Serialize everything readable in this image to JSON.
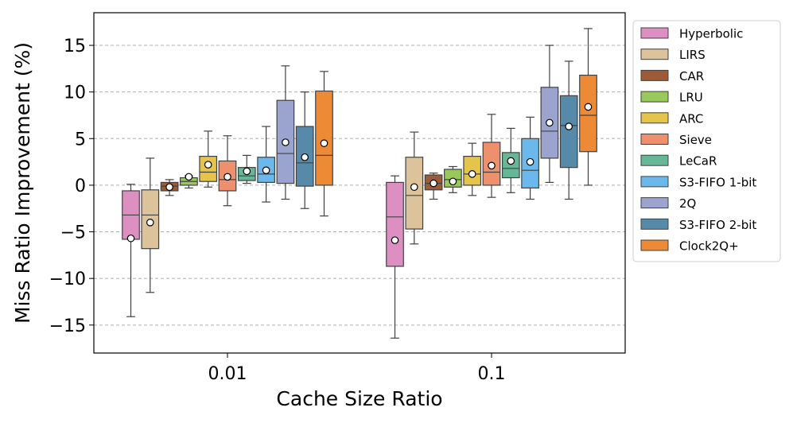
{
  "chart_data": {
    "type": "boxplot",
    "title": "",
    "xlabel": "Cache Size Ratio",
    "ylabel": "Miss Ratio Improvement (%)",
    "ylim": [
      -18,
      18.5
    ],
    "yticks": [
      -15,
      -10,
      -5,
      0,
      5,
      10,
      15
    ],
    "categories": [
      "0.01",
      "0.1"
    ],
    "grid": "y-dashed",
    "legend_position": "right-outside",
    "series": [
      {
        "name": "Hyperbolic",
        "color": "#dd8fc2",
        "boxes": [
          {
            "whislo": -14.1,
            "q1": -5.8,
            "med": -3.2,
            "q3": -0.6,
            "whishi": 0.1,
            "mean": -5.7
          },
          {
            "whislo": -16.4,
            "q1": -8.7,
            "med": -3.4,
            "q3": 0.3,
            "whishi": 1.0,
            "mean": -5.9
          }
        ]
      },
      {
        "name": "LIRS",
        "color": "#dcc39c",
        "boxes": [
          {
            "whislo": -11.5,
            "q1": -6.8,
            "med": -3.2,
            "q3": -0.5,
            "whishi": 2.9,
            "mean": -4.0
          },
          {
            "whislo": -6.3,
            "q1": -4.7,
            "med": -1.1,
            "q3": 3.0,
            "whishi": 5.7,
            "mean": -0.2
          }
        ]
      },
      {
        "name": "CAR",
        "color": "#9c5a37",
        "boxes": [
          {
            "whislo": -1.1,
            "q1": -0.6,
            "med": -0.1,
            "q3": 0.3,
            "whishi": 0.6,
            "mean": -0.2
          },
          {
            "whislo": -1.5,
            "q1": -0.5,
            "med": 0.2,
            "q3": 1.1,
            "whishi": 1.3,
            "mean": 0.2
          }
        ]
      },
      {
        "name": "LRU",
        "color": "#98c95a",
        "boxes": [
          {
            "whislo": -0.3,
            "q1": 0.0,
            "med": 0.4,
            "q3": 0.8,
            "whishi": 1.0,
            "mean": 0.9
          },
          {
            "whislo": -0.8,
            "q1": -0.2,
            "med": 0.6,
            "q3": 1.7,
            "whishi": 2.0,
            "mean": 0.4
          }
        ]
      },
      {
        "name": "ARC",
        "color": "#e4c44a",
        "boxes": [
          {
            "whislo": -0.2,
            "q1": 0.4,
            "med": 1.4,
            "q3": 3.1,
            "whishi": 5.8,
            "mean": 2.2
          },
          {
            "whislo": -1.1,
            "q1": 0.0,
            "med": 1.2,
            "q3": 3.1,
            "whishi": 4.5,
            "mean": 1.2
          }
        ]
      },
      {
        "name": "Sieve",
        "color": "#ee8f6e",
        "boxes": [
          {
            "whislo": -2.2,
            "q1": -0.6,
            "med": 0.6,
            "q3": 2.6,
            "whishi": 5.3,
            "mean": 0.9
          },
          {
            "whislo": -1.3,
            "q1": 0.0,
            "med": 1.4,
            "q3": 4.6,
            "whishi": 7.6,
            "mean": 2.1
          }
        ]
      },
      {
        "name": "LeCaR",
        "color": "#66b698",
        "boxes": [
          {
            "whislo": 0.2,
            "q1": 0.5,
            "med": 1.0,
            "q3": 1.9,
            "whishi": 3.2,
            "mean": 1.5
          },
          {
            "whislo": -0.8,
            "q1": 0.8,
            "med": 1.8,
            "q3": 3.5,
            "whishi": 6.1,
            "mean": 2.6
          }
        ]
      },
      {
        "name": "S3-FIFO 1-bit",
        "color": "#6bb8ec",
        "boxes": [
          {
            "whislo": -1.8,
            "q1": 0.3,
            "med": 1.2,
            "q3": 3.0,
            "whishi": 6.3,
            "mean": 1.6
          },
          {
            "whislo": -1.5,
            "q1": -0.3,
            "med": 1.6,
            "q3": 5.0,
            "whishi": 7.3,
            "mean": 2.5
          }
        ]
      },
      {
        "name": "2Q",
        "color": "#9aa4cf",
        "boxes": [
          {
            "whislo": -1.5,
            "q1": 0.2,
            "med": 3.4,
            "q3": 9.1,
            "whishi": 12.8,
            "mean": 4.6
          },
          {
            "whislo": 0.3,
            "q1": 2.9,
            "med": 5.8,
            "q3": 10.5,
            "whishi": 15.0,
            "mean": 6.7
          }
        ]
      },
      {
        "name": "S3-FIFO 2-bit",
        "color": "#5789a8",
        "boxes": [
          {
            "whislo": -2.5,
            "q1": -0.1,
            "med": 2.4,
            "q3": 6.3,
            "whishi": 10.0,
            "mean": 3.0
          },
          {
            "whislo": -1.5,
            "q1": 1.9,
            "med": 6.4,
            "q3": 9.6,
            "whishi": 13.3,
            "mean": 6.3
          }
        ]
      },
      {
        "name": "Clock2Q+",
        "color": "#ec8a36",
        "boxes": [
          {
            "whislo": -3.3,
            "q1": 0.0,
            "med": 3.2,
            "q3": 10.1,
            "whishi": 12.2,
            "mean": 4.5
          },
          {
            "whislo": 0.0,
            "q1": 3.6,
            "med": 7.5,
            "q3": 11.8,
            "whishi": 16.8,
            "mean": 8.4
          }
        ]
      }
    ]
  }
}
